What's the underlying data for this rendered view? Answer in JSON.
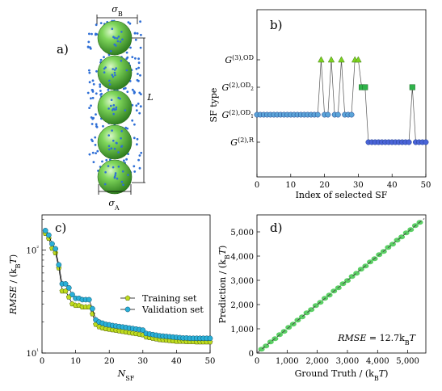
{
  "panels": [
    {
      "id": "a",
      "label": "a)",
      "dimension_labels": {
        "top_width": "σ_B",
        "bottom_width": "σ_A",
        "length": "L"
      },
      "sphere_count": 5,
      "colors": {
        "sphere": "#6ccd4c",
        "sphere_dark": "#2e7d1f",
        "dots": "#2f6fd6"
      }
    },
    {
      "id": "b",
      "label": "b)",
      "chart_data": {
        "type": "line",
        "xlabel": "Index of selected SF",
        "ylabel": "SF type",
        "xlim": [
          0,
          50
        ],
        "x_ticks": [
          0,
          10,
          20,
          30,
          40,
          50
        ],
        "y_categories": [
          "G(2),R",
          "G(2),OD1",
          "G(2),OD2",
          "G(3),OD"
        ],
        "y_category_labels": [
          {
            "base": "G",
            "sup": "(2),R"
          },
          {
            "base": "G",
            "sup": "(2),OD"
          },
          {
            "base": "G",
            "sup": "(2),OD"
          },
          {
            "base": "G",
            "sup": "(3),OD"
          }
        ],
        "x": [
          0,
          1,
          2,
          3,
          4,
          5,
          6,
          7,
          8,
          9,
          10,
          11,
          12,
          13,
          14,
          15,
          16,
          17,
          18,
          19,
          20,
          21,
          22,
          23,
          24,
          25,
          26,
          27,
          28,
          29,
          30,
          31,
          32,
          33,
          34,
          35,
          36,
          37,
          38,
          39,
          40,
          41,
          42,
          43,
          44,
          45,
          46,
          47,
          48,
          49,
          50
        ],
        "y": [
          1,
          1,
          1,
          1,
          1,
          1,
          1,
          1,
          1,
          1,
          1,
          1,
          1,
          1,
          1,
          1,
          1,
          1,
          1,
          3,
          1,
          1,
          3,
          1,
          1,
          3,
          1,
          1,
          1,
          3,
          3,
          2,
          2,
          0,
          0,
          0,
          0,
          0,
          0,
          0,
          0,
          0,
          0,
          0,
          0,
          0,
          2,
          0,
          0,
          0,
          0
        ],
        "marker_colors": [
          "#4c7fc8",
          "#5b9bd5",
          "#2fb34a",
          "#7ed321"
        ],
        "marker_shapes": [
          "circle",
          "hexagon",
          "square",
          "triangle"
        ]
      }
    },
    {
      "id": "c",
      "label": "c)",
      "chart_data": {
        "type": "line",
        "xlabel": "N_SF",
        "ylabel": "RMSE / (k_BT)",
        "yscale": "log",
        "xlim": [
          0,
          50
        ],
        "ylim": [
          10,
          220
        ],
        "x_ticks": [
          0,
          10,
          20,
          30,
          40,
          50
        ],
        "y_ticks": [
          {
            "value": 10,
            "label": "10¹"
          },
          {
            "value": 100,
            "label": "10²"
          }
        ],
        "legend_position": "center-right",
        "x": [
          1,
          2,
          3,
          4,
          5,
          6,
          7,
          8,
          9,
          10,
          11,
          12,
          13,
          14,
          15,
          16,
          17,
          18,
          19,
          20,
          21,
          22,
          23,
          24,
          25,
          26,
          27,
          28,
          29,
          30,
          31,
          32,
          33,
          34,
          35,
          36,
          37,
          38,
          39,
          40,
          41,
          42,
          43,
          44,
          45,
          46,
          47,
          48,
          49,
          50
        ],
        "series": [
          {
            "name": "Training set",
            "color": "#bfdc1f",
            "values": [
              145,
              130,
              104,
              94,
              67,
              40,
              40,
              35,
              30,
              29,
              29,
              28,
              28,
              28,
              24,
              19,
              18,
              17.5,
              17.2,
              17,
              16.8,
              16.6,
              16.4,
              16.2,
              16,
              15.8,
              15.6,
              15.4,
              15.2,
              15,
              14.3,
              14.1,
              13.9,
              13.7,
              13.5,
              13.4,
              13.3,
              13.2,
              13.1,
              13,
              13,
              13,
              12.9,
              12.9,
              12.9,
              12.8,
              12.8,
              12.8,
              12.8,
              12.8
            ]
          },
          {
            "name": "Validation set",
            "color": "#2ab0d8",
            "values": [
              155,
              140,
              115,
              103,
              72,
              47,
              47,
              43,
              37,
              34,
              34,
              33,
              33,
              33,
              27,
              21,
              20,
              19.5,
              19,
              18.8,
              18.5,
              18.3,
              18.1,
              17.9,
              17.7,
              17.5,
              17.3,
              17.1,
              16.9,
              16.7,
              15.5,
              15.3,
              15.1,
              14.9,
              14.7,
              14.6,
              14.5,
              14.4,
              14.3,
              14.2,
              14.1,
              14,
              14,
              13.9,
              13.9,
              13.9,
              13.9,
              13.9,
              13.9,
              13.9
            ]
          }
        ]
      }
    },
    {
      "id": "d",
      "label": "d)",
      "annotation": "RMSE = 12.7k_BT",
      "chart_data": {
        "type": "scatter",
        "xlabel": "Ground Truth / (k_BT)",
        "ylabel": "Prediction / (k_BT)",
        "xlim": [
          0,
          5600
        ],
        "ylim": [
          0,
          5700
        ],
        "x_ticks": [
          {
            "value": 0,
            "label": "0"
          },
          {
            "value": 1000,
            "label": "1,000"
          },
          {
            "value": 2000,
            "label": "2,000"
          },
          {
            "value": 3000,
            "label": "3,000"
          },
          {
            "value": 4000,
            "label": "4,000"
          },
          {
            "value": 5000,
            "label": "5,000"
          }
        ],
        "y_ticks": [
          {
            "value": 0,
            "label": "0"
          },
          {
            "value": 1000,
            "label": "1,000"
          },
          {
            "value": 2000,
            "label": "2,000"
          },
          {
            "value": 3000,
            "label": "3,000"
          },
          {
            "value": 4000,
            "label": "4,000"
          },
          {
            "value": 5000,
            "label": "5,000"
          }
        ],
        "point_color": "#3ec84a",
        "diagonal_color": "#444444",
        "x": [
          150,
          300,
          450,
          600,
          750,
          900,
          1050,
          1200,
          1350,
          1500,
          1650,
          1800,
          1950,
          2100,
          2250,
          2400,
          2550,
          2700,
          2850,
          3000,
          3150,
          3300,
          3450,
          3600,
          3750,
          3900,
          4050,
          4200,
          4350,
          4500,
          4650,
          4800,
          4950,
          5100,
          5250,
          5400
        ],
        "y": [
          160,
          290,
          460,
          590,
          760,
          890,
          1060,
          1190,
          1360,
          1490,
          1660,
          1790,
          1960,
          2090,
          2260,
          2390,
          2560,
          2690,
          2860,
          2990,
          3160,
          3290,
          3460,
          3590,
          3760,
          3890,
          4060,
          4190,
          4360,
          4490,
          4660,
          4790,
          4960,
          5090,
          5260,
          5390
        ]
      }
    }
  ]
}
